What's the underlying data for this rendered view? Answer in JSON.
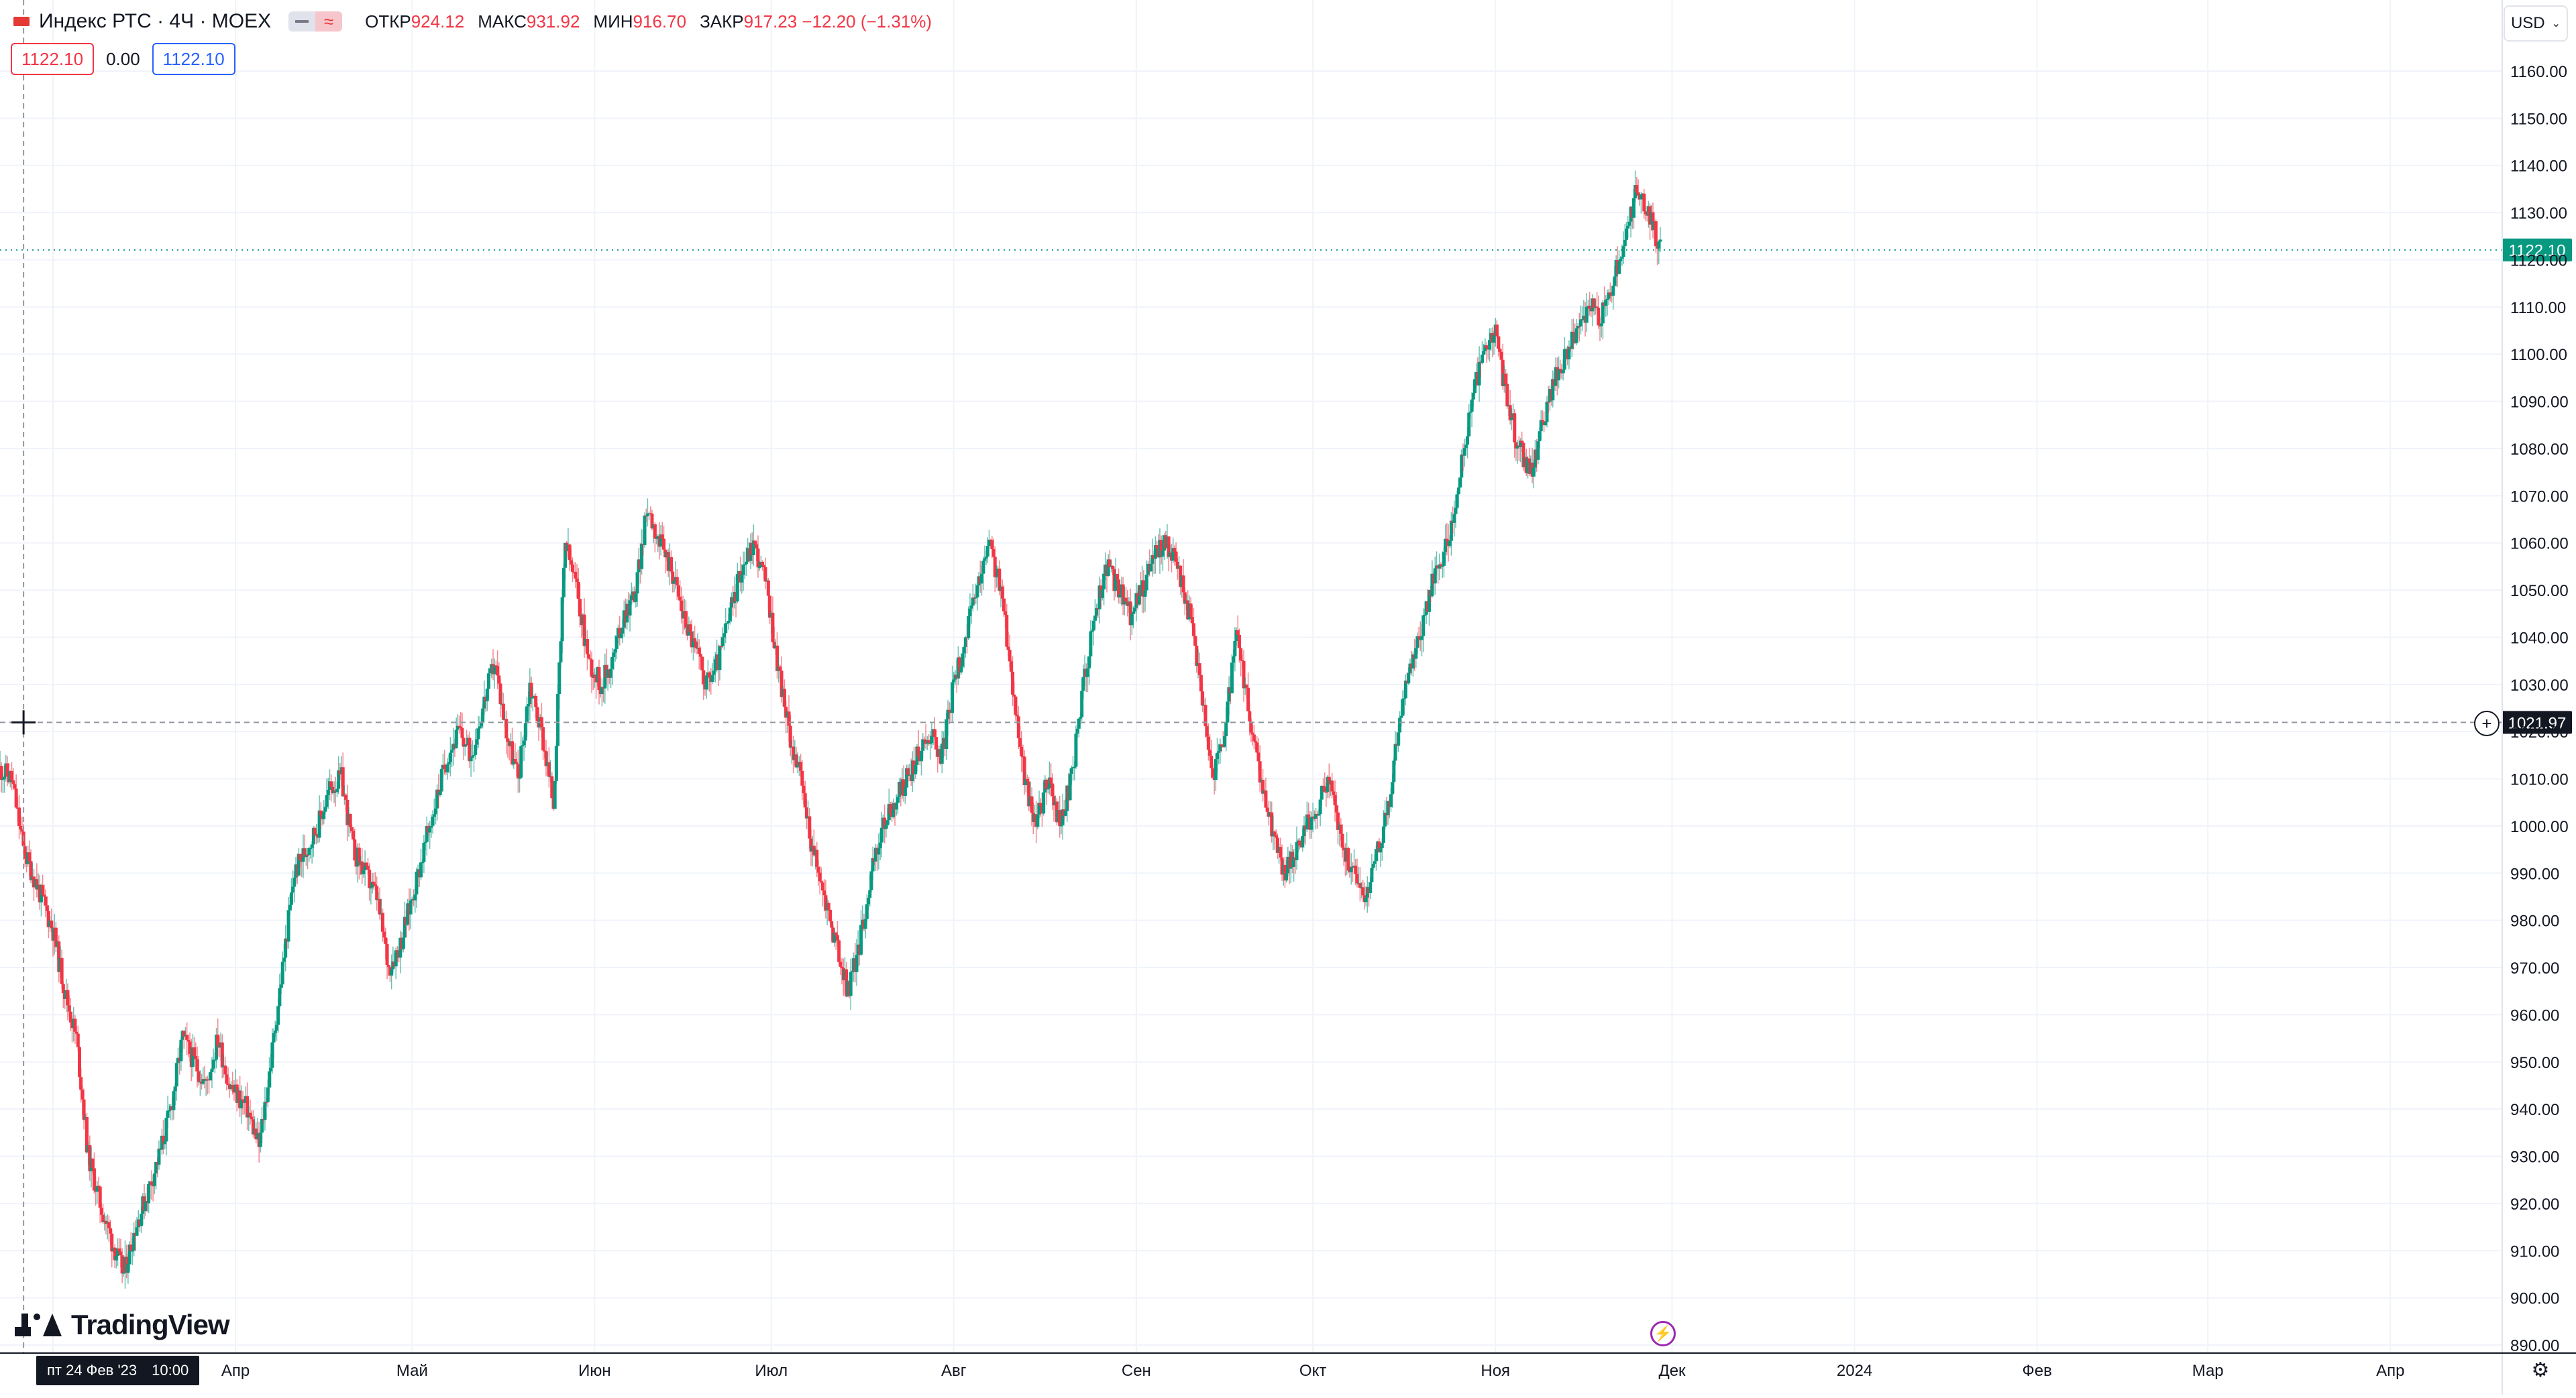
{
  "header": {
    "symbol": "Индекс РТС · 4Ч · MOEX",
    "ohlc": [
      {
        "key": "ОТКР",
        "value": "924.12"
      },
      {
        "key": "МАКС",
        "value": "931.92"
      },
      {
        "key": "МИН",
        "value": "916.70"
      },
      {
        "key": "ЗАКР",
        "value": "917.23 −12.20 (−1.31%)"
      }
    ],
    "bid": "1122.10",
    "spread": "0.00",
    "ask": "1122.10",
    "currency": "USD",
    "logo": "TradingView",
    "crosshair_date": "пт 24 Фев '23",
    "crosshair_time": "10:00"
  },
  "icons": {
    "flag": "ru-flag-icon",
    "currency": "chevron-down-icon",
    "add": "plus-circle-icon",
    "bolt": "lightning-icon",
    "settings": "gear-icon"
  },
  "chart_data": {
    "type": "candlestick",
    "y_axis": {
      "min": 890,
      "max": 1160,
      "ticks": [
        "1160.00",
        "1150.00",
        "1140.00",
        "1130.00",
        "1120.00",
        "1110.00",
        "1100.00",
        "1090.00",
        "1080.00",
        "1070.00",
        "1060.00",
        "1050.00",
        "1040.00",
        "1030.00",
        "1020.00",
        "1010.00",
        "1000.00",
        "990.00",
        "980.00",
        "970.00",
        "960.00",
        "950.00",
        "940.00",
        "930.00",
        "920.00",
        "910.00",
        "900.00",
        "890.00"
      ]
    },
    "x_axis": {
      "labels": [
        "Мар",
        "Апр",
        "Май",
        "Июн",
        "Июл",
        "Авг",
        "Сен",
        "Окт",
        "Ноя",
        "Дек",
        "2024",
        "Фев",
        "Мар",
        "Апр"
      ],
      "start": "2023-02-20",
      "end": "2024-04-20",
      "label_dates": [
        "2023-03-01",
        "2023-04-01",
        "2023-05-01",
        "2023-06-01",
        "2023-07-01",
        "2023-08-01",
        "2023-09-01",
        "2023-10-01",
        "2023-11-01",
        "2023-12-01",
        "2024-01-01",
        "2024-02-01",
        "2024-03-01",
        "2024-04-01"
      ]
    },
    "last_price": 1122.1,
    "last_price_label": "1122.10",
    "crosshair_price": 1021.97,
    "crosshair_price_label": "1021.97",
    "crosshair_date": "2023-02-24",
    "path": [
      [
        "2023-02-20",
        1012
      ],
      [
        "2023-02-22",
        1010
      ],
      [
        "2023-02-24",
        995
      ],
      [
        "2023-02-27",
        985
      ],
      [
        "2023-03-01",
        978
      ],
      [
        "2023-03-03",
        965
      ],
      [
        "2023-03-05",
        955
      ],
      [
        "2023-03-07",
        930
      ],
      [
        "2023-03-09",
        920
      ],
      [
        "2023-03-11",
        912
      ],
      [
        "2023-03-13",
        905
      ],
      [
        "2023-03-15",
        915
      ],
      [
        "2023-03-17",
        922
      ],
      [
        "2023-03-19",
        930
      ],
      [
        "2023-03-21",
        940
      ],
      [
        "2023-03-23",
        955
      ],
      [
        "2023-03-25",
        950
      ],
      [
        "2023-03-27",
        945
      ],
      [
        "2023-03-29",
        955
      ],
      [
        "2023-03-31",
        945
      ],
      [
        "2023-04-03",
        940
      ],
      [
        "2023-04-05",
        932
      ],
      [
        "2023-04-07",
        950
      ],
      [
        "2023-04-09",
        970
      ],
      [
        "2023-04-11",
        990
      ],
      [
        "2023-04-13",
        995
      ],
      [
        "2023-04-15",
        1000
      ],
      [
        "2023-04-17",
        1008
      ],
      [
        "2023-04-19",
        1010
      ],
      [
        "2023-04-21",
        995
      ],
      [
        "2023-04-23",
        990
      ],
      [
        "2023-04-25",
        985
      ],
      [
        "2023-04-27",
        970
      ],
      [
        "2023-04-29",
        975
      ],
      [
        "2023-05-01",
        985
      ],
      [
        "2023-05-03",
        995
      ],
      [
        "2023-05-05",
        1005
      ],
      [
        "2023-05-07",
        1015
      ],
      [
        "2023-05-09",
        1020
      ],
      [
        "2023-05-11",
        1015
      ],
      [
        "2023-05-13",
        1025
      ],
      [
        "2023-05-15",
        1035
      ],
      [
        "2023-05-17",
        1020
      ],
      [
        "2023-05-19",
        1010
      ],
      [
        "2023-05-21",
        1030
      ],
      [
        "2023-05-23",
        1020
      ],
      [
        "2023-05-25",
        1005
      ],
      [
        "2023-05-27",
        1060
      ],
      [
        "2023-05-29",
        1050
      ],
      [
        "2023-05-31",
        1035
      ],
      [
        "2023-06-02",
        1030
      ],
      [
        "2023-06-04",
        1035
      ],
      [
        "2023-06-06",
        1045
      ],
      [
        "2023-06-08",
        1050
      ],
      [
        "2023-06-10",
        1068
      ],
      [
        "2023-06-12",
        1060
      ],
      [
        "2023-06-14",
        1055
      ],
      [
        "2023-06-16",
        1045
      ],
      [
        "2023-06-18",
        1038
      ],
      [
        "2023-06-20",
        1030
      ],
      [
        "2023-06-22",
        1035
      ],
      [
        "2023-06-24",
        1045
      ],
      [
        "2023-06-26",
        1055
      ],
      [
        "2023-06-28",
        1060
      ],
      [
        "2023-06-30",
        1052
      ],
      [
        "2023-07-02",
        1035
      ],
      [
        "2023-07-04",
        1020
      ],
      [
        "2023-07-06",
        1010
      ],
      [
        "2023-07-08",
        995
      ],
      [
        "2023-07-10",
        985
      ],
      [
        "2023-07-12",
        975
      ],
      [
        "2023-07-14",
        965
      ],
      [
        "2023-07-16",
        975
      ],
      [
        "2023-07-18",
        990
      ],
      [
        "2023-07-20",
        1000
      ],
      [
        "2023-07-22",
        1005
      ],
      [
        "2023-07-24",
        1010
      ],
      [
        "2023-07-26",
        1015
      ],
      [
        "2023-07-28",
        1020
      ],
      [
        "2023-07-30",
        1015
      ],
      [
        "2023-08-01",
        1030
      ],
      [
        "2023-08-03",
        1040
      ],
      [
        "2023-08-05",
        1050
      ],
      [
        "2023-08-07",
        1060
      ],
      [
        "2023-08-09",
        1050
      ],
      [
        "2023-08-11",
        1030
      ],
      [
        "2023-08-13",
        1010
      ],
      [
        "2023-08-15",
        1000
      ],
      [
        "2023-08-17",
        1010
      ],
      [
        "2023-08-19",
        1000
      ],
      [
        "2023-08-21",
        1010
      ],
      [
        "2023-08-23",
        1030
      ],
      [
        "2023-08-25",
        1045
      ],
      [
        "2023-08-27",
        1055
      ],
      [
        "2023-08-29",
        1050
      ],
      [
        "2023-08-31",
        1045
      ],
      [
        "2023-09-02",
        1050
      ],
      [
        "2023-09-04",
        1058
      ],
      [
        "2023-09-06",
        1060
      ],
      [
        "2023-09-08",
        1055
      ],
      [
        "2023-09-10",
        1045
      ],
      [
        "2023-09-12",
        1030
      ],
      [
        "2023-09-14",
        1010
      ],
      [
        "2023-09-16",
        1020
      ],
      [
        "2023-09-18",
        1040
      ],
      [
        "2023-09-20",
        1025
      ],
      [
        "2023-09-22",
        1010
      ],
      [
        "2023-09-24",
        1000
      ],
      [
        "2023-09-26",
        990
      ],
      [
        "2023-09-28",
        995
      ],
      [
        "2023-09-30",
        1000
      ],
      [
        "2023-10-02",
        1005
      ],
      [
        "2023-10-04",
        1010
      ],
      [
        "2023-10-06",
        995
      ],
      [
        "2023-10-08",
        990
      ],
      [
        "2023-10-10",
        985
      ],
      [
        "2023-10-12",
        995
      ],
      [
        "2023-10-14",
        1005
      ],
      [
        "2023-10-16",
        1025
      ],
      [
        "2023-10-18",
        1035
      ],
      [
        "2023-10-20",
        1045
      ],
      [
        "2023-10-22",
        1055
      ],
      [
        "2023-10-24",
        1060
      ],
      [
        "2023-10-26",
        1075
      ],
      [
        "2023-10-28",
        1090
      ],
      [
        "2023-10-30",
        1100
      ],
      [
        "2023-11-01",
        1105
      ],
      [
        "2023-11-03",
        1090
      ],
      [
        "2023-11-05",
        1080
      ],
      [
        "2023-11-07",
        1075
      ],
      [
        "2023-11-09",
        1085
      ],
      [
        "2023-11-11",
        1095
      ],
      [
        "2023-11-13",
        1100
      ],
      [
        "2023-11-15",
        1105
      ],
      [
        "2023-11-17",
        1110
      ],
      [
        "2023-11-19",
        1108
      ],
      [
        "2023-11-21",
        1115
      ],
      [
        "2023-11-23",
        1125
      ],
      [
        "2023-11-25",
        1135
      ],
      [
        "2023-11-27",
        1130
      ],
      [
        "2023-11-29",
        1122.1
      ]
    ]
  }
}
